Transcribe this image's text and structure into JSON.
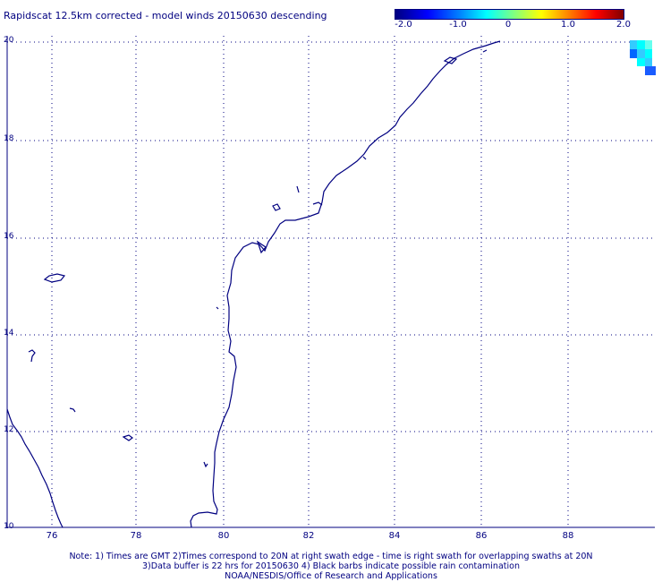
{
  "title": "Rapidscat 12.5km corrected - model winds 20150630 descending",
  "colorbar": {
    "ticks": [
      "-2.0",
      "-1.0",
      "0",
      "1.0",
      "2.0"
    ],
    "min": -2.0,
    "max": 2.0
  },
  "map": {
    "lat_labels": [
      "20",
      "18",
      "16",
      "14",
      "12",
      "10"
    ],
    "lon_labels": [
      "76",
      "78",
      "80",
      "82",
      "84",
      "86",
      "88"
    ],
    "lat_range": [
      10,
      20
    ],
    "lon_range": [
      75,
      89.5
    ],
    "grid": "dotted"
  },
  "swath_cells": [
    {
      "color": "#33ccff"
    },
    {
      "color": "#00ffff"
    },
    {
      "color": "#66ffee"
    },
    {
      "color": "#0066ff"
    },
    {
      "color": "#33ccff"
    },
    {
      "color": "#00ffff"
    },
    {
      "color": "#00ffff"
    },
    {
      "color": "#33ccff"
    },
    {
      "color": "#1a5cff"
    }
  ],
  "notes": {
    "line1": "Note: 1) Times are GMT 2)Times correspond to 20N at right swath edge - time is right swath for overlapping swaths at 20N",
    "line2": "3)Data buffer is 22 hrs for 20150630 4) Black barbs indicate possible rain contamination",
    "line3": "NOAA/NESDIS/Office of Research and Applications"
  }
}
